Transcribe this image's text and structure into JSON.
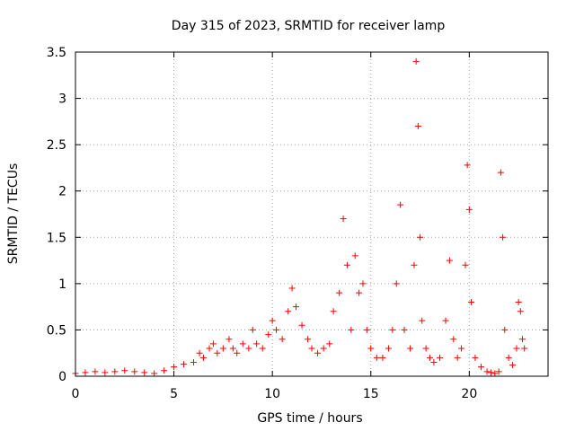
{
  "chart_data": {
    "type": "scatter",
    "title": "Day 315 of 2023, SRMTID for receiver lamp",
    "xlabel": "GPS time / hours",
    "ylabel": "SRMTID / TECUs",
    "xlim": [
      0,
      24
    ],
    "ylim": [
      0,
      3.5
    ],
    "xticks": [
      0,
      5,
      10,
      15,
      20
    ],
    "xtick_labels": [
      "0",
      "5",
      "10",
      "15",
      "20"
    ],
    "yticks": [
      0,
      0.5,
      1,
      1.5,
      2,
      2.5,
      3,
      3.5
    ],
    "ytick_labels": [
      "0",
      "0.5",
      "1",
      "1.5",
      "2",
      "2.5",
      "3",
      "3.5"
    ],
    "grid": true,
    "marker": "+",
    "color": "#ff0000",
    "series": [
      {
        "name": "SRMTID",
        "x": [
          0.0,
          0.5,
          1.0,
          1.5,
          2.0,
          2.5,
          3.0,
          3.5,
          4.0,
          4.5,
          5.0,
          5.5,
          6.0,
          6.3,
          6.5,
          6.8,
          7.0,
          7.2,
          7.5,
          7.8,
          8.0,
          8.2,
          8.5,
          8.8,
          9.0,
          9.2,
          9.5,
          9.8,
          10.0,
          10.2,
          10.5,
          10.8,
          11.0,
          11.2,
          11.5,
          11.8,
          12.0,
          12.3,
          12.6,
          12.9,
          13.1,
          13.4,
          13.6,
          13.8,
          14.0,
          14.2,
          14.4,
          14.6,
          14.8,
          15.0,
          15.3,
          15.6,
          15.9,
          16.1,
          16.3,
          16.5,
          16.7,
          17.0,
          17.2,
          17.3,
          17.4,
          17.5,
          17.6,
          17.8,
          18.0,
          18.2,
          18.5,
          18.8,
          19.0,
          19.2,
          19.4,
          19.6,
          19.8,
          19.9,
          20.0,
          20.1,
          20.3,
          20.6,
          20.9,
          21.1,
          21.3,
          21.5,
          21.6,
          21.7,
          21.8,
          22.0,
          22.2,
          22.4,
          22.5,
          22.6,
          22.7,
          22.8
        ],
        "y": [
          0.03,
          0.04,
          0.05,
          0.04,
          0.05,
          0.06,
          0.05,
          0.04,
          0.03,
          0.06,
          0.1,
          0.13,
          0.15,
          0.25,
          0.2,
          0.3,
          0.35,
          0.25,
          0.3,
          0.4,
          0.3,
          0.25,
          0.35,
          0.3,
          0.5,
          0.35,
          0.3,
          0.45,
          0.6,
          0.5,
          0.4,
          0.7,
          0.95,
          0.75,
          0.55,
          0.4,
          0.3,
          0.25,
          0.3,
          0.35,
          0.7,
          0.9,
          1.7,
          1.2,
          0.5,
          1.3,
          0.9,
          1.0,
          0.5,
          0.3,
          0.2,
          0.2,
          0.3,
          0.5,
          1.0,
          1.85,
          0.5,
          0.3,
          1.2,
          3.4,
          2.7,
          1.5,
          0.6,
          0.3,
          0.2,
          0.15,
          0.2,
          0.6,
          1.25,
          0.4,
          0.2,
          0.3,
          1.2,
          2.28,
          1.8,
          0.8,
          0.2,
          0.1,
          0.05,
          0.04,
          0.03,
          0.05,
          2.2,
          1.5,
          0.5,
          0.2,
          0.12,
          0.3,
          0.8,
          0.7,
          0.4,
          0.3
        ]
      }
    ]
  }
}
